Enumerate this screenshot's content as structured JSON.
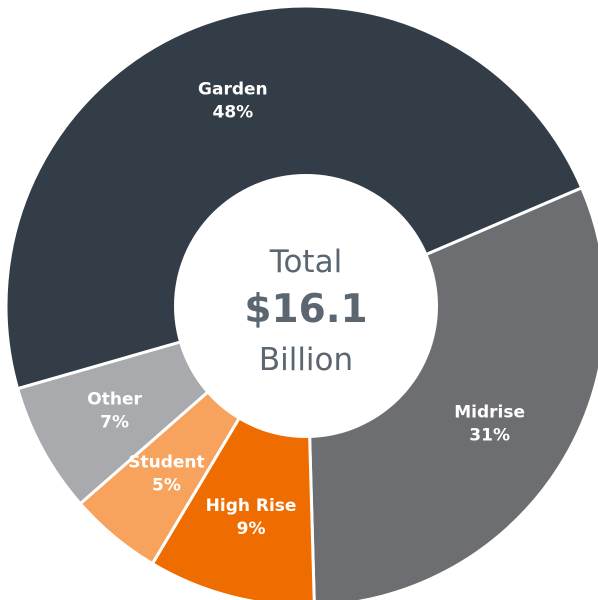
{
  "chart_data": {
    "type": "pie",
    "variant": "donut",
    "slices": [
      {
        "label": "Garden",
        "percent_label": "48%",
        "value": 48,
        "color": "#333d47"
      },
      {
        "label": "Midrise",
        "percent_label": "31%",
        "value": 31,
        "color": "#6d6e71"
      },
      {
        "label": "High Rise",
        "percent_label": "9%",
        "value": 9,
        "color": "#ef6c00"
      },
      {
        "label": "Student",
        "percent_label": "5%",
        "value": 5,
        "color": "#f7a25d"
      },
      {
        "label": "Other",
        "percent_label": "7%",
        "value": 7,
        "color": "#a8aaad"
      }
    ],
    "center": {
      "line1": "Total",
      "line2": "$16.1",
      "line3": "Billion"
    },
    "legend": "none"
  },
  "colors": {
    "center_text": "#5b6670",
    "label_text": "#ffffff",
    "separator": "#ffffff"
  }
}
